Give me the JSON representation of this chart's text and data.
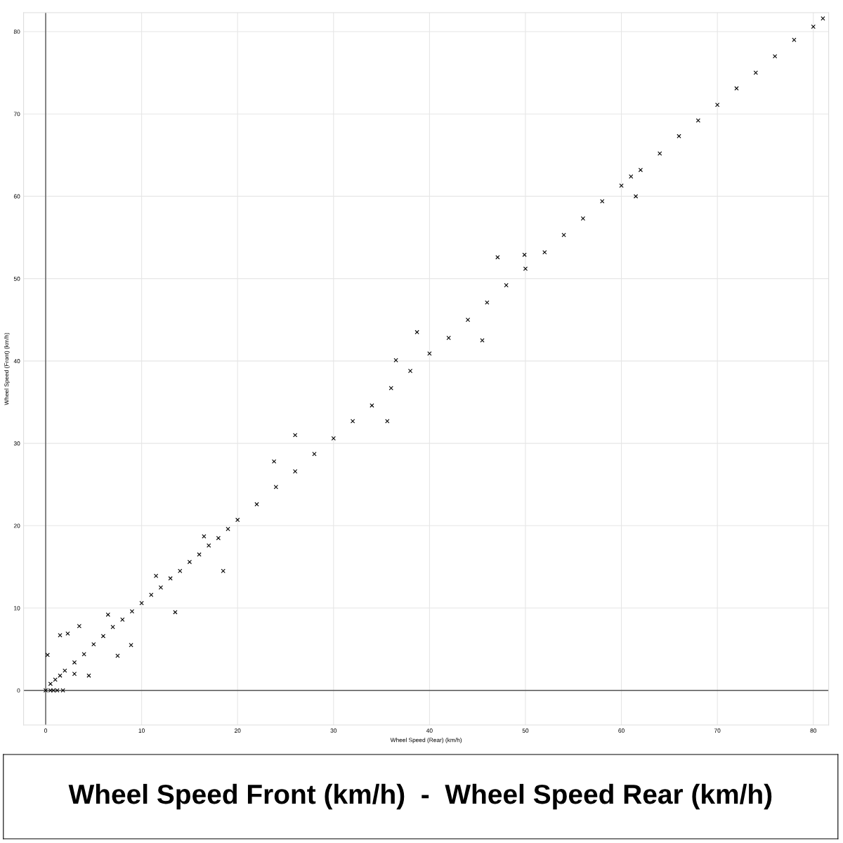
{
  "chart_data": {
    "type": "scatter",
    "title": "Wheel Speed Front (km/h)  -  Wheel Speed Rear (km/h)",
    "xlabel": "Wheel Speed (Rear) (km/h)",
    "ylabel": "Wheel Speed (Front) (km/h)",
    "color": "#000000",
    "marker": "cross",
    "grid": true,
    "xlim": [
      -2.3,
      81.6
    ],
    "ylim": [
      -4.2,
      82.3
    ],
    "xticks": [
      0,
      10,
      20,
      30,
      40,
      50,
      60,
      70,
      80
    ],
    "yticks": [
      0,
      10,
      20,
      30,
      40,
      50,
      60,
      70,
      80
    ],
    "x": [
      0,
      0.5,
      1,
      1.5,
      2,
      3,
      4,
      5,
      6,
      7,
      8,
      9,
      10,
      11,
      12,
      13,
      14,
      15,
      16,
      17,
      18,
      19,
      20,
      22,
      24,
      26,
      28,
      30,
      32,
      34,
      36,
      38,
      40,
      42,
      44,
      46,
      48,
      50,
      52,
      54,
      56,
      58,
      60,
      61,
      62,
      64,
      66,
      68,
      70,
      72,
      74,
      76,
      78,
      80,
      81,
      0.2,
      0.5,
      1.5,
      2.3,
      3.0,
      8.9,
      0.8,
      1.2,
      1.8,
      3.5,
      4.5,
      6.5,
      7.5,
      11.5,
      13.5,
      16.5,
      18.5,
      23.8,
      26,
      35.6,
      36.5,
      38.7,
      45.5,
      47.1,
      49.9,
      61.5
    ],
    "values": [
      0,
      0.8,
      1.3,
      1.8,
      2.4,
      3.4,
      4.4,
      5.6,
      6.6,
      7.7,
      8.6,
      9.6,
      10.6,
      11.6,
      12.5,
      13.6,
      14.5,
      15.6,
      16.5,
      17.6,
      18.5,
      19.6,
      20.7,
      22.6,
      24.7,
      26.6,
      28.7,
      30.6,
      32.7,
      34.6,
      36.7,
      38.8,
      40.9,
      42.8,
      45.0,
      47.1,
      49.2,
      51.2,
      53.2,
      55.3,
      57.3,
      59.4,
      61.3,
      62.4,
      63.2,
      65.2,
      67.3,
      69.2,
      71.1,
      73.1,
      75.0,
      77.0,
      79.0,
      80.6,
      81.6,
      4.3,
      0,
      6.7,
      6.9,
      2.0,
      5.5,
      0,
      0,
      0,
      7.8,
      1.8,
      9.2,
      4.2,
      13.9,
      9.5,
      18.7,
      14.5,
      27.8,
      31.0,
      32.7,
      40.1,
      43.5,
      42.5,
      52.6,
      52.9,
      60.0
    ]
  }
}
